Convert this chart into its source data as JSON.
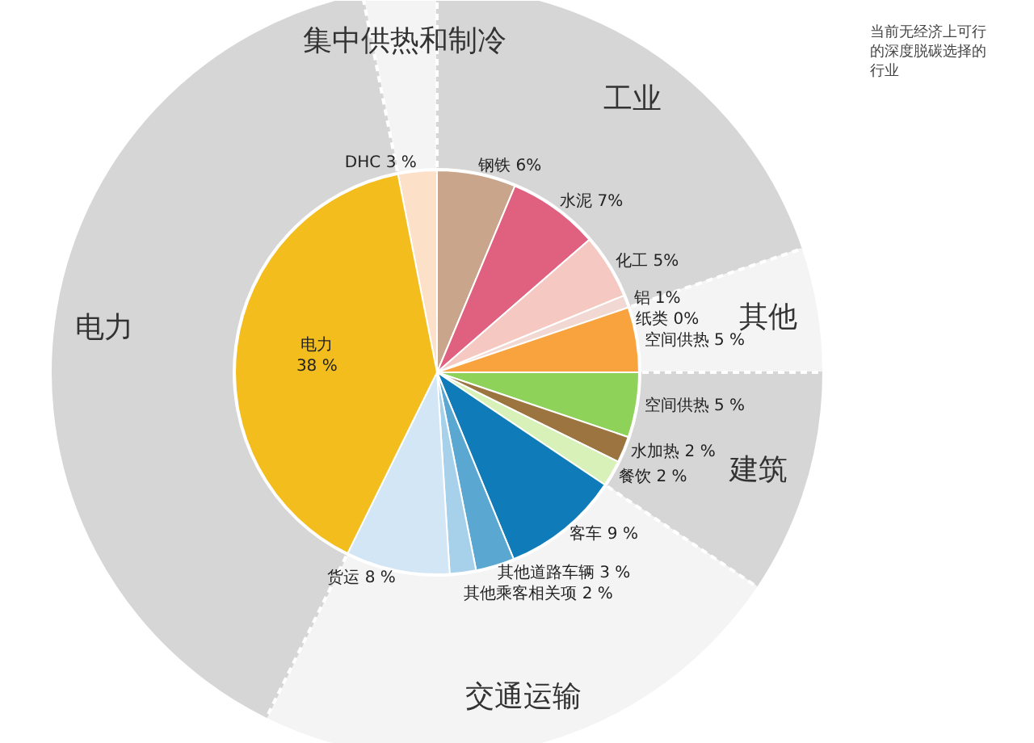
{
  "chart_data": {
    "type": "pie",
    "categories": [
      "DHC",
      "钢铁",
      "水泥",
      "化工",
      "铝",
      "纸类",
      "空间供热",
      "空间供热",
      "水加热",
      "餐饮",
      "客车",
      "其他道路车辆",
      "其他乘客相关项",
      "货运",
      "电力"
    ],
    "value_labels": [
      "3 %",
      "6%",
      "7%",
      "5%",
      "1%",
      "0%",
      "5 %",
      "5 %",
      "2 %",
      "2 %",
      "9 %",
      "3 %",
      "2 %",
      "8 %",
      "38 %"
    ],
    "series": [
      {
        "type": "donut",
        "values": [
          3.1,
          6.3,
          7.3,
          5.2,
          1.0,
          0,
          5.2,
          5.2,
          2.1,
          2.1,
          9.4,
          3.1,
          2.1,
          8.3,
          39.6
        ],
        "colors": [
          "#f4f4f4",
          "#d6d6d6",
          "#d6d6d6",
          "#d6d6d6",
          "#d6d6d6",
          "#d6d6d6",
          "#f4f4f4",
          "#d6d6d6",
          "#d6d6d6",
          "#d6d6d6",
          "#f4f4f4",
          "#f4f4f4",
          "#f4f4f4",
          "#f4f4f4",
          "#d6d6d6"
        ]
      },
      {
        "values": [
          3.1,
          6.3,
          7.3,
          5.2,
          1.0,
          0,
          5.2,
          5.2,
          2.1,
          2.1,
          9.4,
          3.1,
          2.1,
          8.3,
          39.6
        ],
        "colors": [
          "#fde0c8",
          "#c9a58b",
          "#e0617f",
          "#f5c9c2",
          "#f2d8d2",
          "#f2e6e0",
          "#f9a33f",
          "#8fd25a",
          "#9b7440",
          "#d8f1b8",
          "#0f7cb9",
          "#5aa7d1",
          "#a7d1eb",
          "#d3e6f6",
          "#f2bd1d"
        ]
      }
    ],
    "annotations": [
      "集中供热和制冷",
      "工业",
      "其他",
      "建筑",
      "交通运输",
      "电力",
      "当前无经济上可行的深度脱碳选择的行业"
    ]
  }
}
